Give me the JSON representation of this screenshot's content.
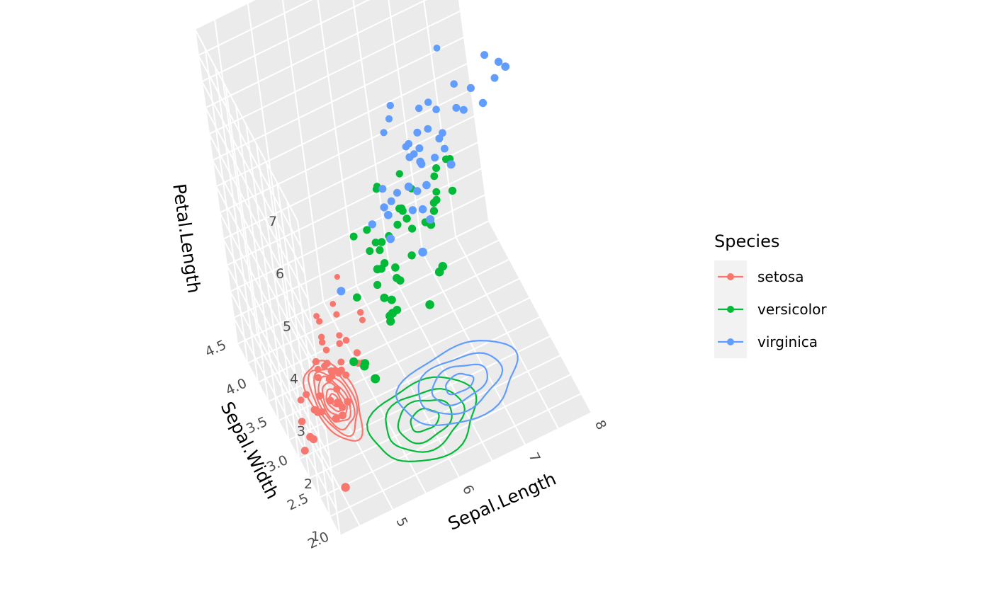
{
  "chart_data": {
    "type": "scatter",
    "subtype": "3d-scatter-with-density-contours",
    "x_label": "Sepal.Length",
    "y_label": "Sepal.Width",
    "z_label": "Petal.Length",
    "x_ticks": [
      "5",
      "6",
      "7",
      "8"
    ],
    "y_ticks": [
      "2.0",
      "2.5",
      "3.0",
      "3.5",
      "4.0",
      "4.5"
    ],
    "z_ticks": [
      "1",
      "2",
      "3",
      "4",
      "5",
      "6",
      "7"
    ],
    "xlim": [
      4.2,
      8.0
    ],
    "ylim": [
      2.0,
      4.5
    ],
    "zlim": [
      1,
      7
    ],
    "grid": true,
    "panel_background": "#ebebeb",
    "legend": {
      "title": "Species",
      "position": "right",
      "items": [
        {
          "label": "setosa",
          "color": "#F8766D"
        },
        {
          "label": "versicolor",
          "color": "#00BA38"
        },
        {
          "label": "virginica",
          "color": "#619CFF"
        }
      ]
    },
    "series": [
      {
        "name": "setosa",
        "color": "#F8766D",
        "points": [
          [
            5.1,
            3.5,
            1.4
          ],
          [
            4.9,
            3.0,
            1.4
          ],
          [
            4.7,
            3.2,
            1.3
          ],
          [
            4.6,
            3.1,
            1.5
          ],
          [
            5.0,
            3.6,
            1.4
          ],
          [
            5.4,
            3.9,
            1.7
          ],
          [
            4.6,
            3.4,
            1.4
          ],
          [
            5.0,
            3.4,
            1.5
          ],
          [
            4.4,
            2.9,
            1.4
          ],
          [
            4.9,
            3.1,
            1.5
          ],
          [
            5.4,
            3.7,
            1.5
          ],
          [
            4.8,
            3.4,
            1.6
          ],
          [
            4.8,
            3.0,
            1.4
          ],
          [
            4.3,
            3.0,
            1.1
          ],
          [
            5.8,
            4.0,
            1.2
          ],
          [
            5.7,
            4.4,
            1.5
          ],
          [
            5.4,
            3.9,
            1.3
          ],
          [
            5.1,
            3.5,
            1.4
          ],
          [
            5.7,
            3.8,
            1.7
          ],
          [
            5.1,
            3.8,
            1.5
          ],
          [
            5.4,
            3.4,
            1.7
          ],
          [
            5.1,
            3.7,
            1.5
          ],
          [
            4.6,
            3.6,
            1.0
          ],
          [
            5.1,
            3.3,
            1.7
          ],
          [
            4.8,
            3.4,
            1.9
          ],
          [
            5.0,
            3.0,
            1.6
          ],
          [
            5.0,
            3.4,
            1.6
          ],
          [
            5.2,
            3.5,
            1.5
          ],
          [
            5.2,
            3.4,
            1.4
          ],
          [
            4.7,
            3.2,
            1.6
          ],
          [
            4.8,
            3.1,
            1.6
          ],
          [
            5.4,
            3.4,
            1.5
          ],
          [
            5.2,
            4.1,
            1.5
          ],
          [
            5.5,
            4.2,
            1.4
          ],
          [
            4.9,
            3.1,
            1.5
          ],
          [
            5.0,
            3.2,
            1.2
          ],
          [
            5.5,
            3.5,
            1.3
          ],
          [
            4.9,
            3.6,
            1.4
          ],
          [
            4.4,
            3.0,
            1.3
          ],
          [
            5.1,
            3.4,
            1.5
          ],
          [
            5.0,
            3.5,
            1.3
          ],
          [
            4.5,
            2.3,
            1.3
          ],
          [
            4.4,
            3.2,
            1.3
          ],
          [
            5.0,
            3.5,
            1.6
          ],
          [
            5.1,
            3.8,
            1.9
          ],
          [
            4.8,
            3.0,
            1.4
          ],
          [
            5.1,
            3.8,
            1.6
          ],
          [
            4.6,
            3.2,
            1.4
          ],
          [
            5.3,
            3.7,
            1.5
          ],
          [
            5.0,
            3.3,
            1.4
          ]
        ]
      },
      {
        "name": "versicolor",
        "color": "#00BA38",
        "points": [
          [
            7.0,
            3.2,
            4.7
          ],
          [
            6.4,
            3.2,
            4.5
          ],
          [
            6.9,
            3.1,
            4.9
          ],
          [
            5.5,
            2.3,
            4.0
          ],
          [
            6.5,
            2.8,
            4.6
          ],
          [
            5.7,
            2.8,
            4.5
          ],
          [
            6.3,
            3.3,
            4.7
          ],
          [
            4.9,
            2.4,
            3.3
          ],
          [
            6.6,
            2.9,
            4.6
          ],
          [
            5.2,
            2.7,
            3.9
          ],
          [
            5.0,
            2.0,
            3.5
          ],
          [
            5.9,
            3.0,
            4.2
          ],
          [
            6.0,
            2.2,
            4.0
          ],
          [
            6.1,
            2.9,
            4.7
          ],
          [
            5.6,
            2.9,
            3.6
          ],
          [
            6.7,
            3.1,
            4.4
          ],
          [
            5.6,
            3.0,
            4.5
          ],
          [
            5.8,
            2.7,
            4.1
          ],
          [
            6.2,
            2.2,
            4.5
          ],
          [
            5.6,
            2.5,
            3.9
          ],
          [
            5.9,
            3.2,
            4.8
          ],
          [
            6.1,
            2.8,
            4.0
          ],
          [
            6.3,
            2.5,
            4.9
          ],
          [
            6.1,
            2.8,
            4.7
          ],
          [
            6.4,
            2.9,
            4.3
          ],
          [
            6.6,
            3.0,
            4.4
          ],
          [
            6.8,
            2.8,
            4.8
          ],
          [
            6.7,
            3.0,
            5.0
          ],
          [
            6.0,
            2.9,
            4.5
          ],
          [
            5.7,
            2.6,
            3.5
          ],
          [
            5.5,
            2.4,
            3.8
          ],
          [
            5.5,
            2.4,
            3.7
          ],
          [
            5.8,
            2.7,
            3.9
          ],
          [
            6.0,
            2.7,
            5.1
          ],
          [
            5.4,
            3.0,
            4.5
          ],
          [
            6.0,
            3.4,
            4.5
          ],
          [
            6.7,
            3.1,
            4.7
          ],
          [
            6.3,
            2.3,
            4.4
          ],
          [
            5.6,
            3.0,
            4.1
          ],
          [
            5.5,
            2.5,
            4.0
          ],
          [
            5.5,
            2.6,
            4.4
          ],
          [
            6.1,
            3.0,
            4.6
          ],
          [
            5.8,
            2.6,
            4.0
          ],
          [
            5.0,
            2.3,
            3.3
          ],
          [
            5.6,
            2.7,
            4.2
          ],
          [
            5.7,
            3.0,
            4.2
          ],
          [
            5.7,
            2.9,
            4.2
          ],
          [
            6.2,
            2.9,
            4.3
          ],
          [
            5.1,
            2.5,
            3.0
          ],
          [
            5.7,
            2.8,
            4.1
          ]
        ]
      },
      {
        "name": "virginica",
        "color": "#619CFF",
        "points": [
          [
            6.3,
            3.3,
            6.0
          ],
          [
            5.8,
            2.7,
            5.1
          ],
          [
            7.1,
            3.0,
            5.9
          ],
          [
            6.3,
            2.9,
            5.6
          ],
          [
            6.5,
            3.0,
            5.8
          ],
          [
            7.6,
            3.0,
            6.6
          ],
          [
            4.9,
            2.5,
            4.5
          ],
          [
            7.3,
            2.9,
            6.3
          ],
          [
            6.7,
            2.5,
            5.8
          ],
          [
            7.2,
            3.6,
            6.1
          ],
          [
            6.5,
            3.2,
            5.1
          ],
          [
            6.4,
            2.7,
            5.3
          ],
          [
            6.8,
            3.0,
            5.5
          ],
          [
            5.7,
            2.5,
            5.0
          ],
          [
            5.8,
            2.8,
            5.1
          ],
          [
            6.4,
            3.2,
            5.3
          ],
          [
            6.5,
            3.0,
            5.5
          ],
          [
            7.7,
            3.8,
            6.7
          ],
          [
            7.7,
            2.6,
            6.9
          ],
          [
            6.0,
            2.2,
            5.0
          ],
          [
            6.9,
            3.2,
            5.7
          ],
          [
            5.6,
            2.8,
            4.9
          ],
          [
            7.7,
            2.8,
            6.7
          ],
          [
            6.3,
            2.7,
            4.9
          ],
          [
            6.7,
            3.3,
            5.7
          ],
          [
            7.2,
            3.2,
            6.0
          ],
          [
            6.2,
            2.8,
            4.8
          ],
          [
            6.1,
            3.0,
            4.9
          ],
          [
            6.4,
            2.8,
            5.6
          ],
          [
            7.2,
            3.0,
            5.8
          ],
          [
            7.4,
            2.8,
            6.1
          ],
          [
            7.9,
            3.8,
            6.4
          ],
          [
            6.4,
            2.8,
            5.6
          ],
          [
            6.3,
            2.8,
            5.1
          ],
          [
            6.1,
            2.6,
            5.6
          ],
          [
            7.7,
            3.0,
            6.1
          ],
          [
            6.3,
            3.4,
            5.6
          ],
          [
            6.4,
            3.1,
            5.5
          ],
          [
            6.0,
            3.0,
            4.8
          ],
          [
            6.9,
            3.1,
            5.4
          ],
          [
            6.7,
            3.1,
            5.6
          ],
          [
            6.9,
            3.1,
            5.1
          ],
          [
            5.8,
            2.7,
            5.1
          ],
          [
            6.8,
            3.2,
            5.9
          ],
          [
            6.7,
            3.3,
            5.7
          ],
          [
            6.7,
            3.0,
            5.2
          ],
          [
            6.3,
            2.5,
            5.0
          ],
          [
            6.5,
            3.0,
            5.2
          ],
          [
            6.2,
            3.4,
            5.4
          ],
          [
            5.9,
            3.0,
            5.1
          ]
        ]
      }
    ],
    "density_contours_on_floor": {
      "x": "Sepal.Length",
      "y": "Sepal.Width",
      "groups": [
        {
          "name": "setosa",
          "color": "#F8766D",
          "rings": [
            {
              "cx": 5.0,
              "cy": 3.43,
              "rx": 0.3,
              "ry": 0.5
            },
            {
              "cx": 5.0,
              "cy": 3.43,
              "rx": 0.25,
              "ry": 0.42
            },
            {
              "cx": 5.0,
              "cy": 3.43,
              "rx": 0.21,
              "ry": 0.35
            },
            {
              "cx": 5.0,
              "cy": 3.43,
              "rx": 0.17,
              "ry": 0.28
            },
            {
              "cx": 5.0,
              "cy": 3.43,
              "rx": 0.13,
              "ry": 0.21
            },
            {
              "cx": 5.0,
              "cy": 3.43,
              "rx": 0.09,
              "ry": 0.14
            },
            {
              "cx": 5.0,
              "cy": 3.43,
              "rx": 0.05,
              "ry": 0.08
            }
          ]
        },
        {
          "name": "versicolor",
          "color": "#00BA38",
          "rings": [
            {
              "cx": 5.95,
              "cy": 2.77,
              "rx": 0.75,
              "ry": 0.45
            },
            {
              "cx": 5.95,
              "cy": 2.77,
              "rx": 0.55,
              "ry": 0.33
            },
            {
              "cx": 5.95,
              "cy": 2.77,
              "rx": 0.38,
              "ry": 0.23
            },
            {
              "cx": 5.95,
              "cy": 2.77,
              "rx": 0.2,
              "ry": 0.12
            }
          ]
        },
        {
          "name": "virginica",
          "color": "#619CFF",
          "rings": [
            {
              "cx": 6.6,
              "cy": 2.97,
              "rx": 0.85,
              "ry": 0.42
            },
            {
              "cx": 6.6,
              "cy": 2.97,
              "rx": 0.6,
              "ry": 0.3
            },
            {
              "cx": 6.6,
              "cy": 2.97,
              "rx": 0.4,
              "ry": 0.2
            },
            {
              "cx": 6.6,
              "cy": 2.97,
              "rx": 0.2,
              "ry": 0.1
            }
          ]
        }
      ]
    }
  }
}
